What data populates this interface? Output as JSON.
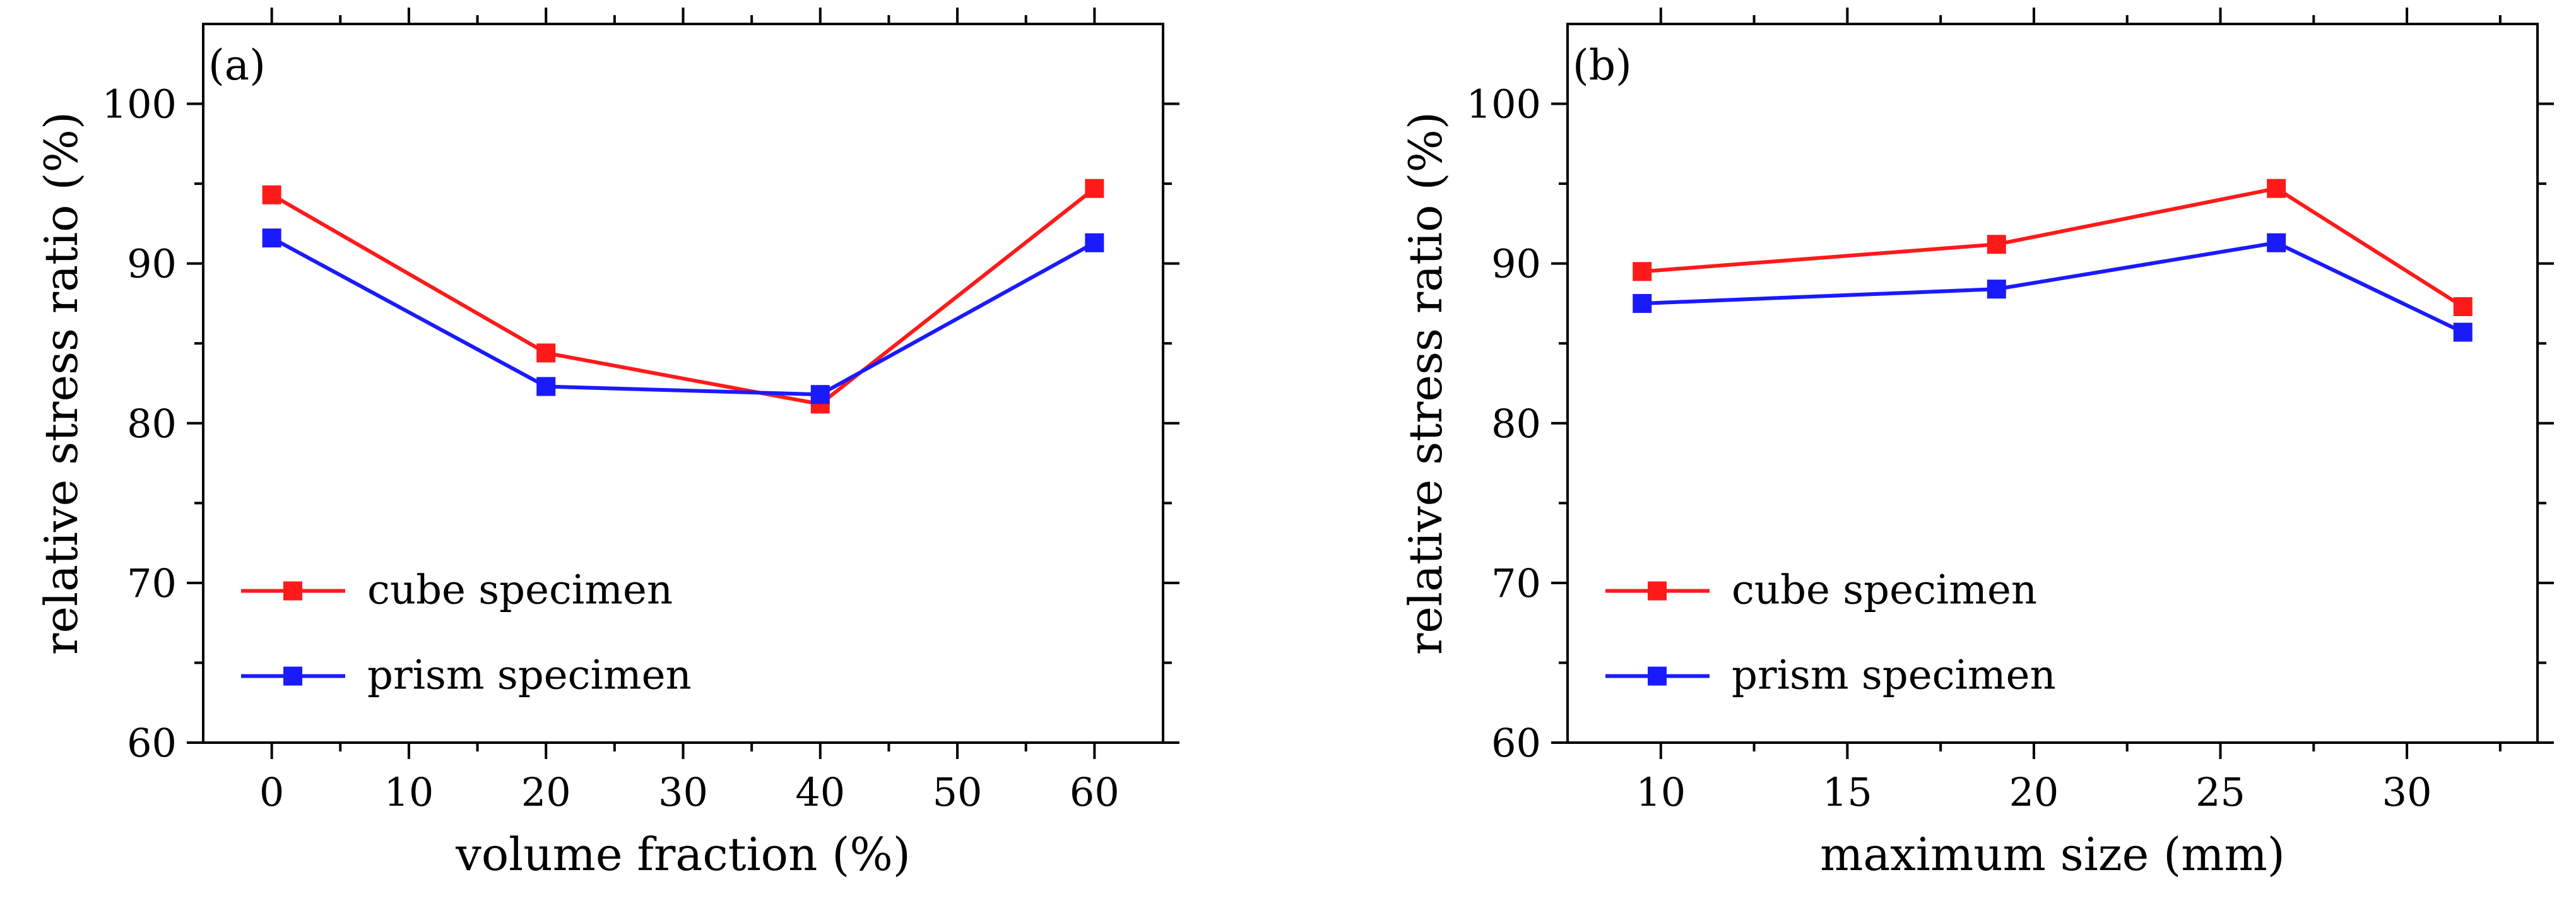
{
  "chart_data": [
    {
      "type": "line",
      "panel_label": "(a)",
      "xlabel": "volume fraction (%)",
      "ylabel": "relative stress ratio (%)",
      "xlim": [
        -5,
        65
      ],
      "ylim": [
        60,
        105
      ],
      "xticks": [
        0,
        10,
        20,
        30,
        40,
        50,
        60
      ],
      "yticks": [
        60,
        70,
        80,
        90,
        100
      ],
      "x": [
        0,
        20,
        40,
        60
      ],
      "series": [
        {
          "name": "cube specimen",
          "color": "#ff1a1a",
          "values": [
            94.3,
            84.4,
            81.2,
            94.7
          ]
        },
        {
          "name": "prism specimen",
          "color": "#1a1aff",
          "values": [
            91.6,
            82.3,
            81.8,
            91.3
          ]
        }
      ],
      "legend": "lower-left"
    },
    {
      "type": "line",
      "panel_label": "(b)",
      "xlabel": "maximum size (mm)",
      "ylabel": "relative stress ratio (%)",
      "xlim": [
        7.5,
        33.5
      ],
      "ylim": [
        60,
        105
      ],
      "xticks": [
        10,
        15,
        20,
        25,
        30
      ],
      "yticks": [
        60,
        70,
        80,
        90,
        100
      ],
      "x": [
        9.5,
        19,
        26.5,
        31.5
      ],
      "series": [
        {
          "name": "cube specimen",
          "color": "#ff1a1a",
          "values": [
            89.5,
            91.2,
            94.7,
            87.3
          ]
        },
        {
          "name": "prism specimen",
          "color": "#1a1aff",
          "values": [
            87.5,
            88.4,
            91.3,
            85.7
          ]
        }
      ],
      "legend": "lower-left"
    }
  ]
}
